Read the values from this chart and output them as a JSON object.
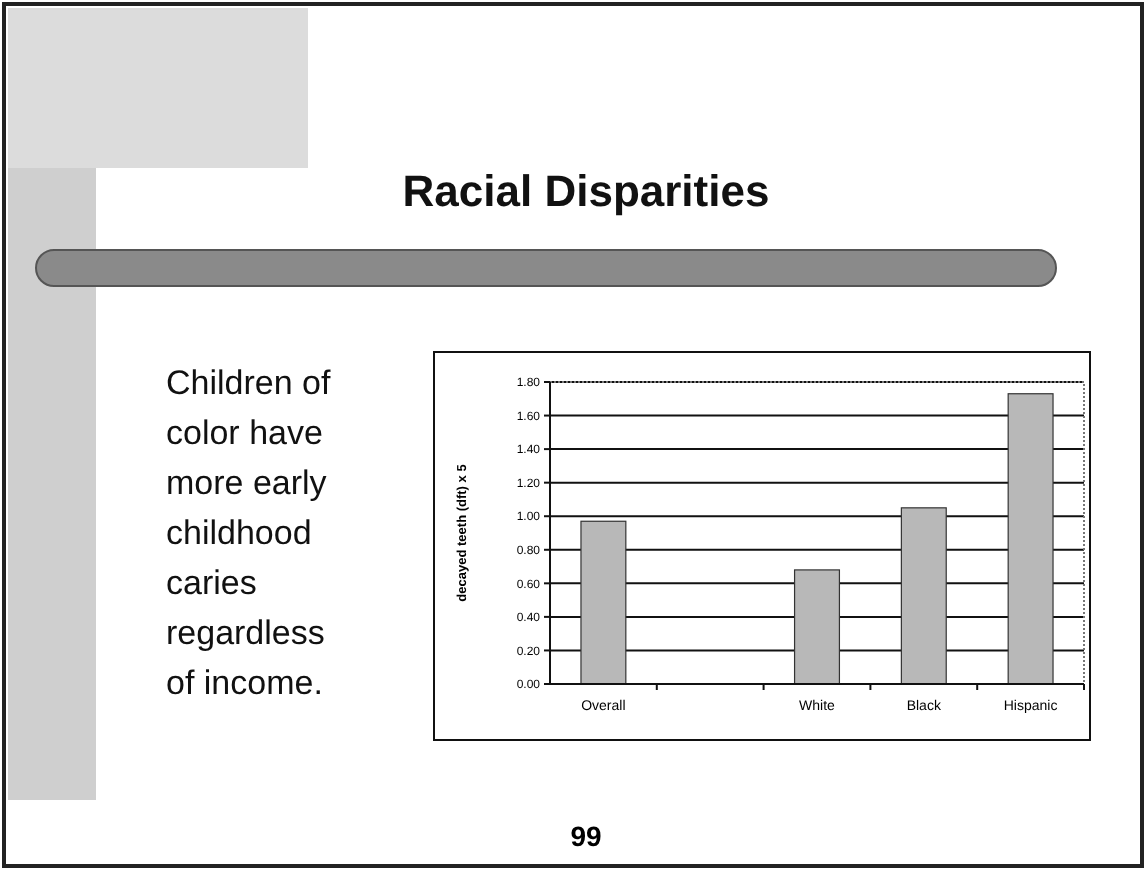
{
  "chart_data": {
    "type": "bar",
    "title": "Racial Disparities",
    "ylabel": "decayed teeth (dft) x 5",
    "categories": [
      "Overall",
      null,
      "White",
      "Black",
      "Hispanic"
    ],
    "values": [
      0.97,
      null,
      0.68,
      1.05,
      1.73
    ],
    "color": "#b8b8b8",
    "ylim": [
      0,
      1.8
    ],
    "yticks": [
      {
        "value": 0,
        "label": "0.00"
      },
      {
        "value": 0.2,
        "label": "0.20"
      },
      {
        "value": 0.4,
        "label": "0.40"
      },
      {
        "value": 0.6,
        "label": "0.60"
      },
      {
        "value": 0.8,
        "label": "0.80"
      },
      {
        "value": 1,
        "label": "1.00"
      },
      {
        "value": 1.2,
        "label": "1.20"
      },
      {
        "value": 1.4,
        "label": "1.40"
      },
      {
        "value": 1.6,
        "label": "1.60"
      },
      {
        "value": 1.8,
        "label": "1.80"
      }
    ],
    "grid": "y",
    "annotations": [
      "Children of color have more early childhood caries regardless of income.",
      "99"
    ]
  }
}
